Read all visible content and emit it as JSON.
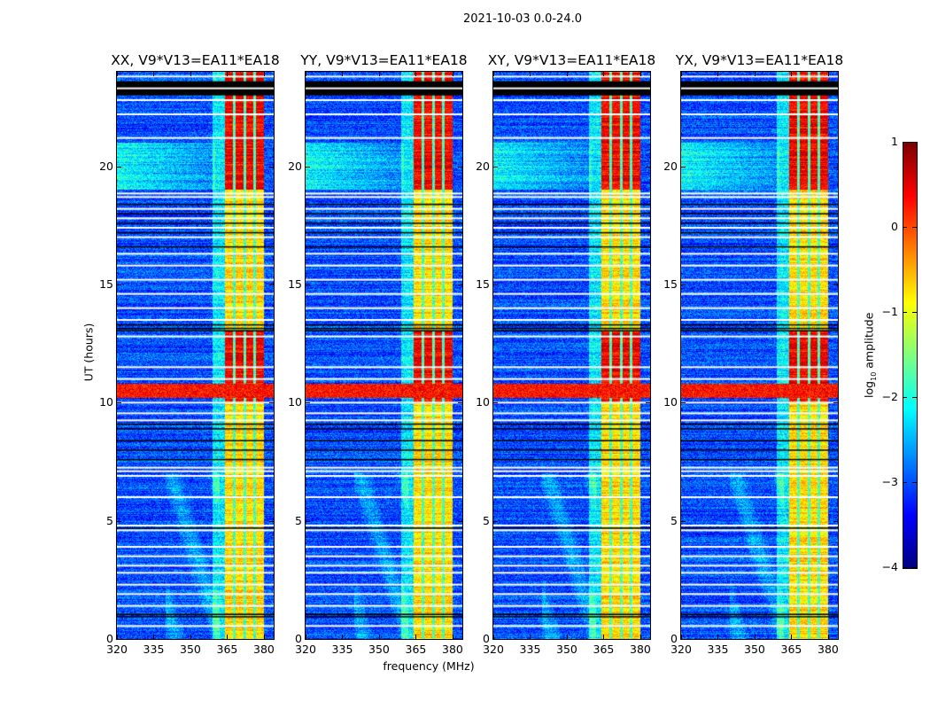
{
  "suptitle": "2021-10-03 0.0-24.0",
  "chart_data": {
    "type": "heatmap",
    "title": "2021-10-03 0.0-24.0",
    "xlabel": "frequency (MHz)",
    "ylabel": "UT (hours)",
    "xlim": [
      320,
      384
    ],
    "ylim": [
      0,
      24
    ],
    "xticks": [
      320,
      335,
      350,
      365,
      380
    ],
    "yticks": [
      0,
      5,
      10,
      15,
      20
    ],
    "panels": [
      {
        "title": "XX, V9*V13=EA11*EA18"
      },
      {
        "title": "YY, V9*V13=EA11*EA18"
      },
      {
        "title": "XY, V9*V13=EA11*EA18"
      },
      {
        "title": "YX, V9*V13=EA11*EA18"
      }
    ],
    "colorbar": {
      "label_main": "log",
      "label_sub": "10",
      "label_tail": " amplitude",
      "range": [
        -4,
        1
      ],
      "ticks": [
        1,
        0,
        -1,
        -2,
        -3,
        -4
      ],
      "tick_labels": [
        "1",
        "0",
        "−1",
        "−2",
        "−3",
        "−4"
      ],
      "colormap": "jet"
    },
    "background_level": -3.0,
    "bright_band_mhz": [
      364,
      380
    ],
    "bright_band_level": -0.7,
    "bright_band_strong_hours": [
      [
        10,
        13
      ],
      [
        19,
        24
      ]
    ],
    "bright_band_strong_level": 0.4,
    "band_gaps_mhz": [
      367.8,
      372.2,
      376.2
    ],
    "rfi_band_hours": [
      10.2,
      10.8
    ],
    "rfi_band_level": 0.3,
    "flagged_white_hours": [
      0.55,
      1.4,
      1.9,
      2.3,
      2.8,
      3.1,
      3.5,
      3.9,
      4.6,
      4.8,
      6.0,
      6.9,
      7.1,
      7.25,
      9.25,
      9.55,
      10.0,
      11.0,
      11.5,
      12.8,
      13.5,
      14.0,
      14.6,
      15.2,
      15.8,
      16.3,
      17.0,
      17.4,
      17.8,
      18.2,
      18.7,
      18.85,
      21.2,
      22.2,
      22.8,
      23.8
    ],
    "flagged_black_hours": [
      0.95,
      1.05,
      4.7,
      7.6,
      8.0,
      8.4,
      8.9,
      9.1,
      13.05,
      13.15,
      13.3,
      16.6,
      17.2,
      17.6,
      18.0,
      18.4
    ],
    "flagged_black_block_hours": [
      23.0,
      23.6
    ]
  }
}
